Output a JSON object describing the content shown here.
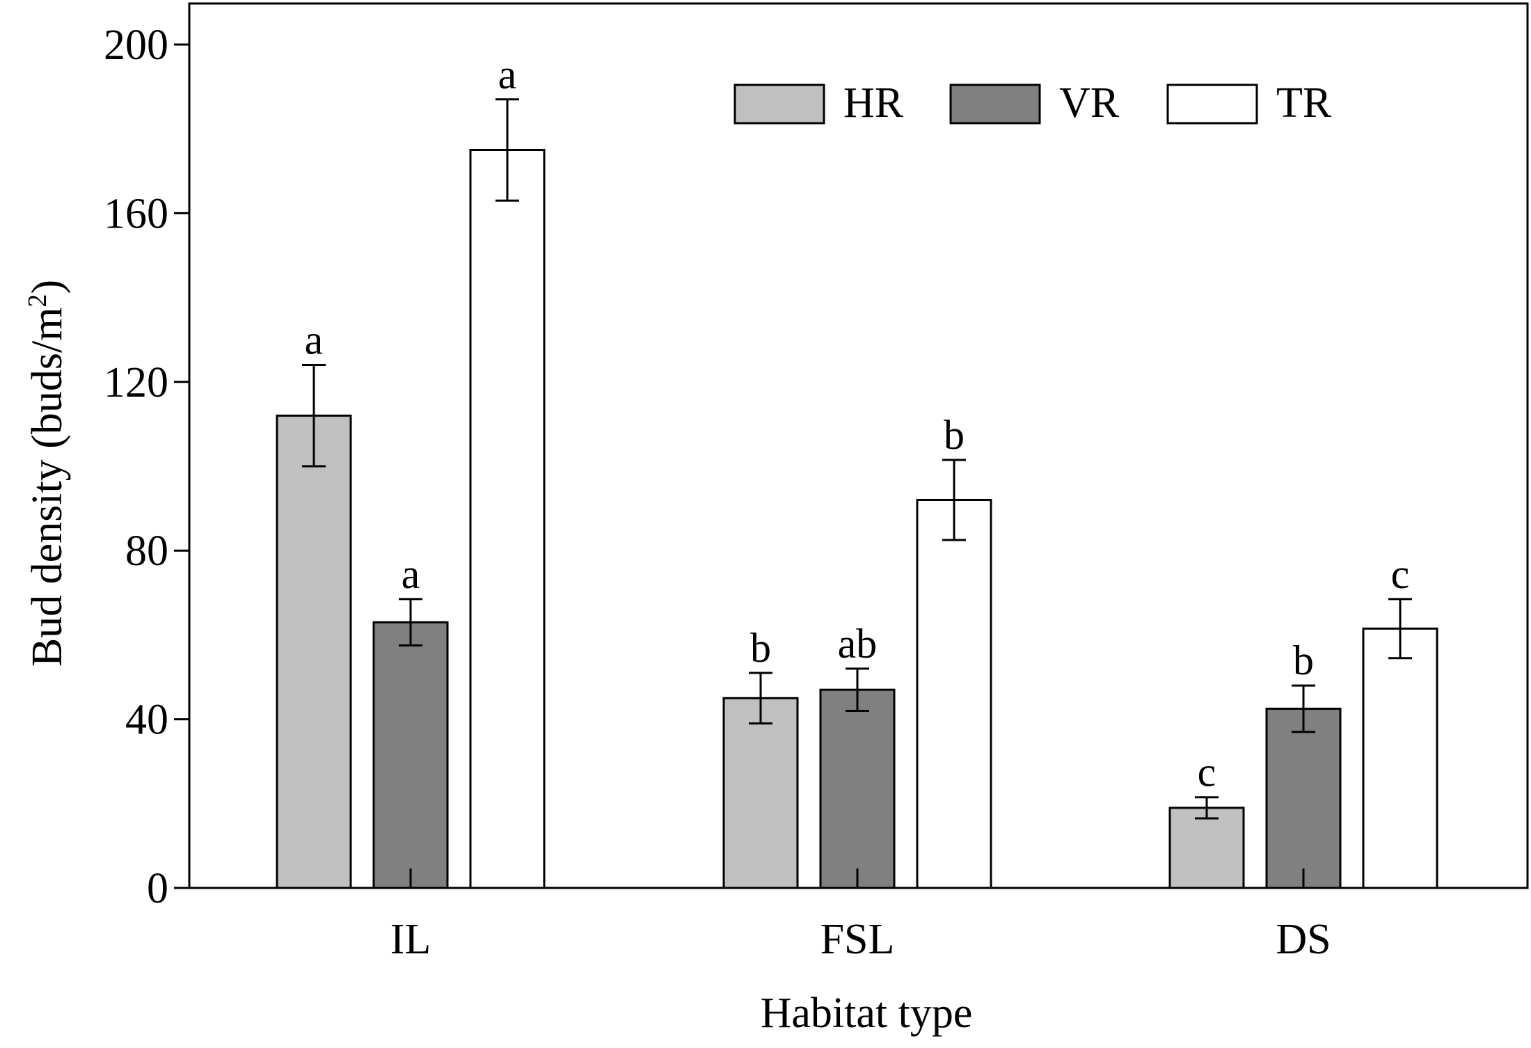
{
  "chart_data": {
    "type": "bar",
    "title": "",
    "xlabel": "Habitat type",
    "ylabel": "Bud density (buds/m",
    "ylabel_sup": "2",
    "ylabel_close": ")",
    "ylim": [
      0,
      200
    ],
    "yticks": [
      0,
      40,
      80,
      120,
      160,
      200
    ],
    "ytick_labels": [
      "0",
      "40",
      "80",
      "120",
      "160",
      "200"
    ],
    "categories": [
      "IL",
      "FSL",
      "DS"
    ],
    "series": [
      {
        "name": "HR",
        "color": "#c0c0c0",
        "values": [
          112,
          45,
          19
        ],
        "errors": [
          12,
          6,
          2.5
        ],
        "letters": [
          "a",
          "b",
          "c"
        ]
      },
      {
        "name": "VR",
        "color": "#808080",
        "values": [
          63,
          47,
          42.5
        ],
        "errors": [
          5.5,
          5,
          5.5
        ],
        "letters": [
          "a",
          "ab",
          "b"
        ]
      },
      {
        "name": "TR",
        "color": "#ffffff",
        "values": [
          175,
          92,
          61.5
        ],
        "errors": [
          12,
          9.5,
          7
        ],
        "letters": [
          "a",
          "b",
          "c"
        ]
      }
    ],
    "legend_position": "top-right",
    "grid": false
  }
}
